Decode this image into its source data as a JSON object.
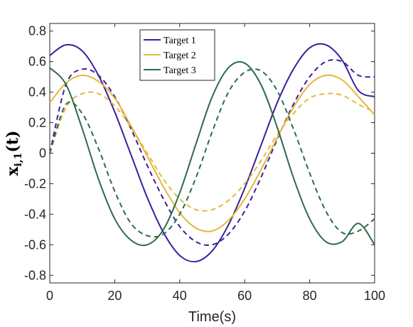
{
  "chart_data": {
    "type": "line",
    "xlabel": "Time(s)",
    "ylabel": "x",
    "ylabel_sub": "i,1",
    "ylabel_arg": "(t)",
    "xlim": [
      0,
      100
    ],
    "ylim": [
      -0.85,
      0.85
    ],
    "xticks": [
      0,
      20,
      40,
      60,
      80,
      100
    ],
    "xtick_labels": [
      "0",
      "20",
      "40",
      "60",
      "80",
      "100"
    ],
    "yticks": [
      -0.8,
      -0.6,
      -0.4,
      -0.2,
      0,
      0.2,
      0.4,
      0.6,
      0.8
    ],
    "ytick_labels": [
      "-0.8",
      "-0.6",
      "-0.4",
      "-0.2",
      "0",
      "0.2",
      "0.4",
      "0.6",
      "0.8"
    ],
    "grid": false,
    "legend_position": "top-center",
    "colors": {
      "target1": "#3b1f9e",
      "target2": "#e3b83b",
      "target3": "#2e6b4a"
    },
    "x": [
      0,
      5,
      10,
      15,
      20,
      25,
      30,
      35,
      40,
      45,
      50,
      55,
      60,
      65,
      70,
      75,
      80,
      85,
      90,
      95,
      100
    ],
    "series": [
      {
        "name": "Target 1",
        "style": "solid",
        "color": "#3b1f9e",
        "values": [
          0.64,
          0.71,
          0.67,
          0.51,
          0.27,
          -0.01,
          -0.29,
          -0.52,
          -0.67,
          -0.71,
          -0.64,
          -0.47,
          -0.23,
          0.05,
          0.33,
          0.55,
          0.69,
          0.71,
          0.61,
          0.41,
          0.37
        ]
      },
      {
        "name": "",
        "style": "dashed",
        "color": "#3b1f9e",
        "values": [
          0.0,
          0.45,
          0.55,
          0.51,
          0.37,
          0.16,
          -0.08,
          -0.3,
          -0.48,
          -0.58,
          -0.6,
          -0.53,
          -0.38,
          -0.16,
          0.09,
          0.32,
          0.5,
          0.6,
          0.6,
          0.51,
          0.5
        ]
      },
      {
        "name": "Target 2",
        "style": "solid",
        "color": "#e3b83b",
        "values": [
          0.33,
          0.46,
          0.51,
          0.47,
          0.36,
          0.18,
          -0.02,
          -0.22,
          -0.39,
          -0.49,
          -0.51,
          -0.44,
          -0.3,
          -0.11,
          0.1,
          0.3,
          0.45,
          0.51,
          0.48,
          0.37,
          0.25
        ]
      },
      {
        "name": "",
        "style": "dashed",
        "color": "#e3b83b",
        "values": [
          0.0,
          0.3,
          0.39,
          0.39,
          0.31,
          0.17,
          0.0,
          -0.17,
          -0.3,
          -0.37,
          -0.37,
          -0.31,
          -0.2,
          -0.05,
          0.12,
          0.26,
          0.36,
          0.39,
          0.38,
          0.32,
          0.27
        ]
      },
      {
        "name": "Target 3",
        "style": "solid",
        "color": "#2e6b4a",
        "values": [
          0.56,
          0.45,
          0.16,
          -0.17,
          -0.43,
          -0.57,
          -0.6,
          -0.5,
          -0.26,
          0.06,
          0.37,
          0.56,
          0.59,
          0.45,
          0.17,
          -0.16,
          -0.43,
          -0.58,
          -0.58,
          -0.46,
          -0.6
        ]
      },
      {
        "name": "",
        "style": "dashed",
        "color": "#2e6b4a",
        "values": [
          0.0,
          0.32,
          0.26,
          0.03,
          -0.25,
          -0.46,
          -0.54,
          -0.53,
          -0.4,
          -0.16,
          0.14,
          0.4,
          0.53,
          0.54,
          0.41,
          0.16,
          -0.13,
          -0.38,
          -0.52,
          -0.51,
          -0.43
        ]
      }
    ]
  }
}
